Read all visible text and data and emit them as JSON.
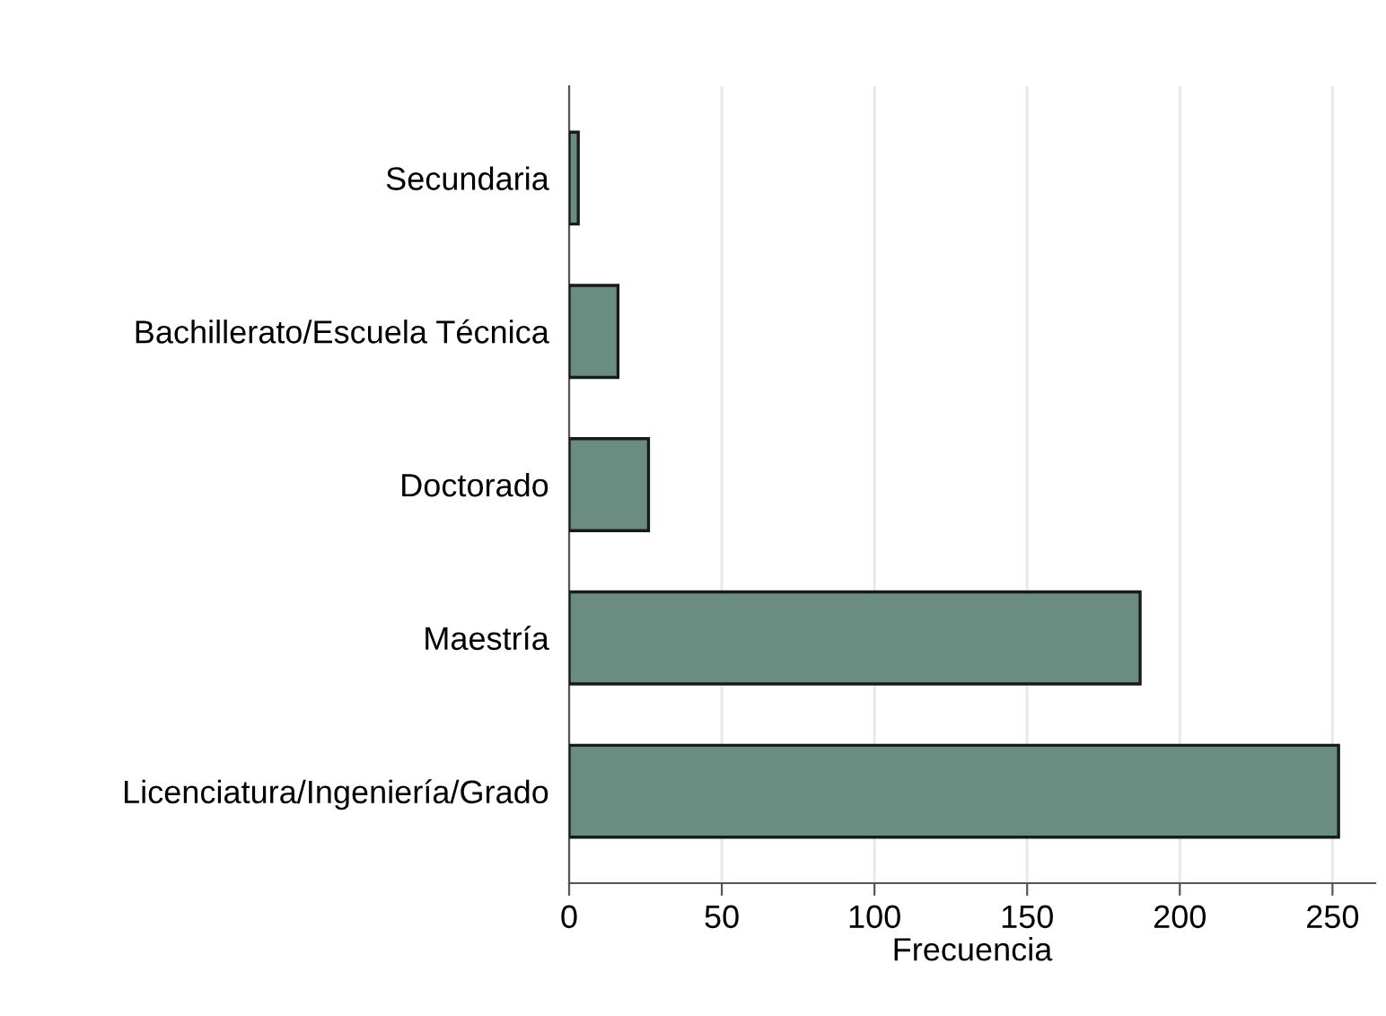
{
  "chart_data": {
    "type": "bar",
    "orientation": "horizontal",
    "xlabel": "Frecuencia",
    "categories": [
      "Secundaria",
      "Bachillerato/Escuela Técnica",
      "Doctorado",
      "Maestría",
      "Licenciatura/Ingeniería/Grado"
    ],
    "values": [
      3,
      16,
      26,
      187,
      252
    ],
    "color": "#6b8c80",
    "xlim": [
      0,
      264
    ],
    "xticks": [
      0,
      50,
      100,
      150,
      200,
      250
    ],
    "grid": "x"
  }
}
